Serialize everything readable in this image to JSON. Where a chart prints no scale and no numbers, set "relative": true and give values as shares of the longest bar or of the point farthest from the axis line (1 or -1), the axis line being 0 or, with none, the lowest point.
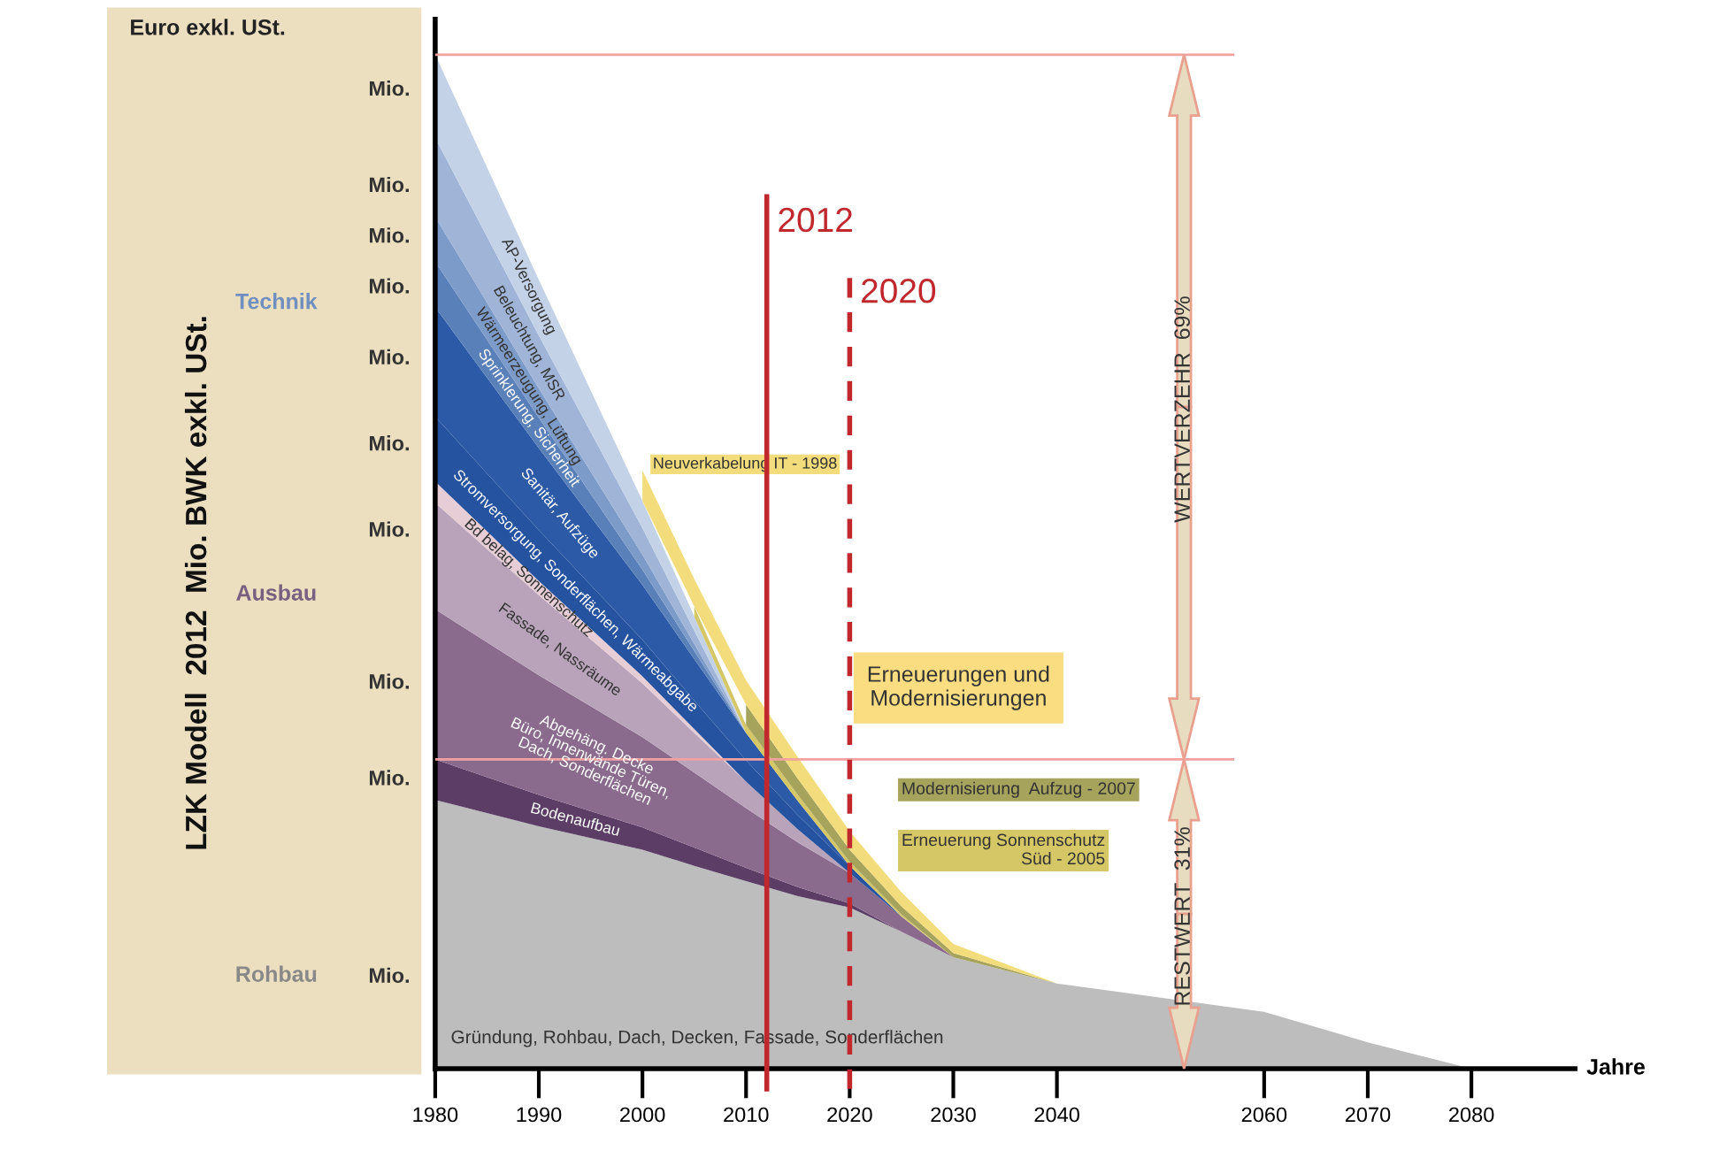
{
  "chart_data": {
    "type": "area",
    "stacked": true,
    "relative": true,
    "xlabel": "Jahre",
    "x": [
      1980,
      1990,
      2000,
      2005,
      2010,
      2015,
      2020,
      2025,
      2030,
      2040,
      2060,
      2070,
      2080
    ],
    "xlim": [
      1980,
      2090
    ],
    "xticks": [
      1980,
      1990,
      2000,
      2010,
      2020,
      2030,
      2040,
      2060,
      2070,
      2080
    ],
    "grid": false,
    "legend": false,
    "series": [
      {
        "name": "Gründung, Rohbau, Dach, Decken, Fassade, Sonderflächen",
        "color": "#bdbdbd",
        "values": [
          0.265,
          0.239,
          0.216,
          0.2,
          0.185,
          0.17,
          0.159,
          0.135,
          0.11,
          0.084,
          0.056,
          0.026,
          0
        ]
      },
      {
        "name": "Bodenaufbau",
        "color": "#5b3d66",
        "values": [
          0.04,
          0.031,
          0.022,
          0.018,
          0.013,
          0.009,
          0.004,
          0,
          0,
          0,
          0,
          0,
          0
        ]
      },
      {
        "name": "Abgehäng. Decke\nBüro, Innenwände Türen,\nDach, Sonderflächen",
        "color": "#8a6b8e",
        "values": [
          0.148,
          0.118,
          0.089,
          0.074,
          0.059,
          0.044,
          0.03,
          0.015,
          0,
          0,
          0,
          0,
          0
        ]
      },
      {
        "name": "Fassade, Nassräume",
        "color": "#b9a3ba",
        "values": [
          0.105,
          0.079,
          0.053,
          0.039,
          0.026,
          0.013,
          0,
          0,
          0,
          0,
          0,
          0,
          0
        ]
      },
      {
        "name": "Bd belag, Sonnenschutz",
        "color": "#e6cdd6",
        "values": [
          0.021,
          0.014,
          0.007,
          0.004,
          0,
          0,
          0,
          0,
          0,
          0,
          0,
          0,
          0
        ]
      },
      {
        "name": "Stromversorgung, Sonderflächen, Wärmeabgabe",
        "color": "#2653a0",
        "values": [
          0.064,
          0.05,
          0.036,
          0.028,
          0.021,
          0.014,
          0.007,
          0,
          0,
          0,
          0,
          0,
          0
        ]
      },
      {
        "name": "Sanitär, Aufzüge",
        "color": "#2c5aa6",
        "values": [
          0.108,
          0.081,
          0.054,
          0.041,
          0.027,
          0.014,
          0,
          0,
          0,
          0,
          0,
          0,
          0
        ]
      },
      {
        "name": "Sprinklerung, Sicherheit",
        "color": "#5a80ba",
        "values": [
          0.045,
          0.03,
          0.015,
          0.008,
          0,
          0,
          0,
          0,
          0,
          0,
          0,
          0,
          0
        ]
      },
      {
        "name": "Wärmeerzeugung, Lüftung",
        "color": "#7d9bc8",
        "values": [
          0.044,
          0.029,
          0.015,
          0.007,
          0,
          0,
          0,
          0,
          0,
          0,
          0,
          0,
          0
        ]
      },
      {
        "name": "Beleuchtung, MSR",
        "color": "#9fb4d7",
        "values": [
          0.078,
          0.052,
          0.026,
          0.013,
          0,
          0,
          0,
          0,
          0,
          0,
          0,
          0,
          0
        ]
      },
      {
        "name": "AP-Versorgung",
        "color": "#c4d2e8",
        "values": [
          0.082,
          0.055,
          0.027,
          0.014,
          0,
          0,
          0,
          0,
          0,
          0,
          0,
          0,
          0
        ]
      },
      {
        "name": "Erneuerung Sonnenschutz\nSüd - 2005",
        "color": "#d6c766",
        "values": [
          null,
          null,
          null,
          0.01,
          0.008,
          0.006,
          0.004,
          0.002,
          0,
          0,
          0,
          0,
          0
        ]
      },
      {
        "name": "Modernisierung  Aufzug - 2007",
        "color": "#a6a35c",
        "values": [
          null,
          null,
          null,
          null,
          0.02,
          0.016,
          0.012,
          0.008,
          0.004,
          0,
          0,
          0,
          0
        ]
      },
      {
        "name": "Neuverkabelung IT - 1998",
        "color": "#f3dc7c",
        "values": [
          null,
          null,
          0.03,
          0.027,
          0.024,
          0.021,
          0.018,
          0.014,
          0.009,
          0,
          0,
          0,
          0
        ]
      }
    ],
    "ref_lines": [
      {
        "axis": "x",
        "value": 2012,
        "label": "2012",
        "color": "#c0282d",
        "line_style": "solid"
      },
      {
        "axis": "x",
        "value": 2020,
        "label": "2020",
        "color": "#c0282d",
        "line_style": "dashed"
      },
      {
        "axis": "y",
        "value": 1.0,
        "color": "#f2a0a0",
        "line_style": "solid"
      },
      {
        "axis": "y",
        "value": 0.305,
        "color": "#f2a0a0",
        "line_style": "solid"
      }
    ],
    "annotations": [
      "Euro exkl. USt.",
      "Technik",
      "Ausbau",
      "Rohbau",
      "Mio.",
      "Mio.",
      "Mio.",
      "Mio.",
      "Mio.",
      "Mio.",
      "Mio.",
      "Mio.",
      "Mio.",
      "Mio.",
      "Erneuerungen und\nModernisierungen",
      "LZK Modell  2012  Mio. BWK exkl. USt.",
      "WERTVERZEHR  69%",
      "RESTWERT  31%"
    ]
  }
}
